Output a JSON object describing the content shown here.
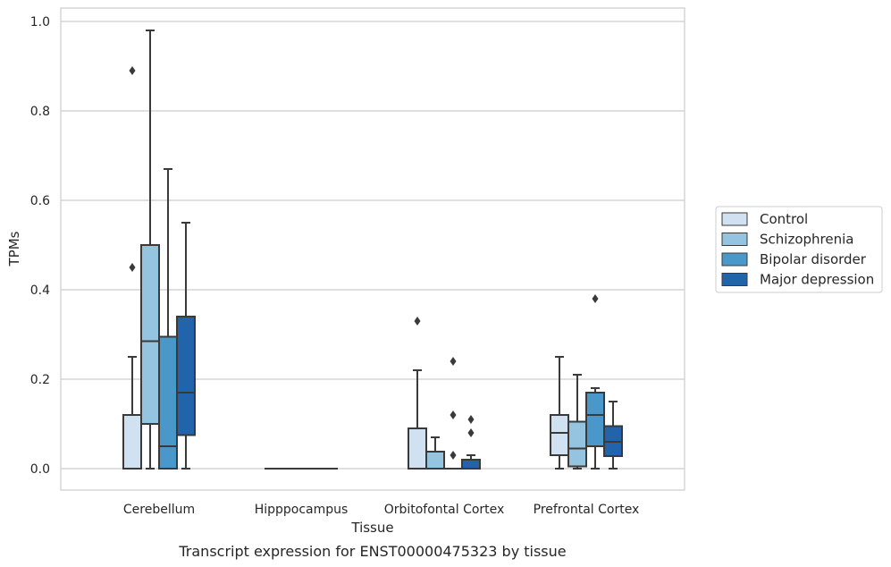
{
  "chart_data": {
    "type": "box",
    "xlabel": "Tissue",
    "ylabel": "TPMs",
    "caption": "Transcript expression for ENST00000475323 by tissue",
    "ylim": [
      -0.045,
      1.03
    ],
    "yticks": [
      0.0,
      0.2,
      0.4,
      0.6,
      0.8,
      1.0
    ],
    "ytick_labels": [
      "0.0",
      "0.2",
      "0.4",
      "0.6",
      "0.8",
      "1.0"
    ],
    "grid": "horizontal",
    "legend_position": "right",
    "categories": [
      "Cerebellum",
      "Hipppocampus",
      "Orbitofontal Cortex",
      "Prefrontal Cortex"
    ],
    "series": [
      {
        "name": "Control",
        "color": "#d0e1f2",
        "boxes": [
          {
            "whisker_low": 0.0,
            "q1": 0.0,
            "median": 0.0,
            "q3": 0.12,
            "whisker_high": 0.25,
            "outliers": [
              0.45,
              0.89
            ]
          },
          {
            "whisker_low": 0.0,
            "q1": 0.0,
            "median": 0.0,
            "q3": 0.0,
            "whisker_high": 0.0,
            "outliers": []
          },
          {
            "whisker_low": 0.0,
            "q1": 0.0,
            "median": 0.0,
            "q3": 0.09,
            "whisker_high": 0.22,
            "outliers": [
              0.33
            ]
          },
          {
            "whisker_low": 0.0,
            "q1": 0.03,
            "median": 0.08,
            "q3": 0.12,
            "whisker_high": 0.25,
            "outliers": []
          }
        ]
      },
      {
        "name": "Schizophrenia",
        "color": "#94c4df",
        "boxes": [
          {
            "whisker_low": 0.0,
            "q1": 0.1,
            "median": 0.285,
            "q3": 0.5,
            "whisker_high": 0.98,
            "outliers": []
          },
          {
            "whisker_low": 0.0,
            "q1": 0.0,
            "median": 0.0,
            "q3": 0.0,
            "whisker_high": 0.0,
            "outliers": []
          },
          {
            "whisker_low": 0.0,
            "q1": 0.0,
            "median": 0.0,
            "q3": 0.038,
            "whisker_high": 0.07,
            "outliers": []
          },
          {
            "whisker_low": 0.0,
            "q1": 0.005,
            "median": 0.045,
            "q3": 0.105,
            "whisker_high": 0.21,
            "outliers": []
          }
        ]
      },
      {
        "name": "Bipolar disorder",
        "color": "#4a98c9",
        "boxes": [
          {
            "whisker_low": 0.0,
            "q1": 0.0,
            "median": 0.05,
            "q3": 0.295,
            "whisker_high": 0.67,
            "outliers": []
          },
          {
            "whisker_low": 0.0,
            "q1": 0.0,
            "median": 0.0,
            "q3": 0.0,
            "whisker_high": 0.0,
            "outliers": []
          },
          {
            "whisker_low": 0.0,
            "q1": 0.0,
            "median": 0.0,
            "q3": 0.0,
            "whisker_high": 0.0,
            "outliers": [
              0.03,
              0.12,
              0.24
            ]
          },
          {
            "whisker_low": 0.0,
            "q1": 0.05,
            "median": 0.12,
            "q3": 0.17,
            "whisker_high": 0.18,
            "outliers": [
              0.38
            ]
          }
        ]
      },
      {
        "name": "Major depression",
        "color": "#2164ab",
        "boxes": [
          {
            "whisker_low": 0.0,
            "q1": 0.075,
            "median": 0.17,
            "q3": 0.34,
            "whisker_high": 0.55,
            "outliers": []
          },
          {
            "whisker_low": 0.0,
            "q1": 0.0,
            "median": 0.0,
            "q3": 0.0,
            "whisker_high": 0.0,
            "outliers": []
          },
          {
            "whisker_low": 0.0,
            "q1": 0.0,
            "median": 0.0,
            "q3": 0.02,
            "whisker_high": 0.03,
            "outliers": [
              0.08,
              0.11
            ]
          },
          {
            "whisker_low": 0.0,
            "q1": 0.028,
            "median": 0.06,
            "q3": 0.095,
            "whisker_high": 0.15,
            "outliers": []
          }
        ]
      }
    ]
  }
}
